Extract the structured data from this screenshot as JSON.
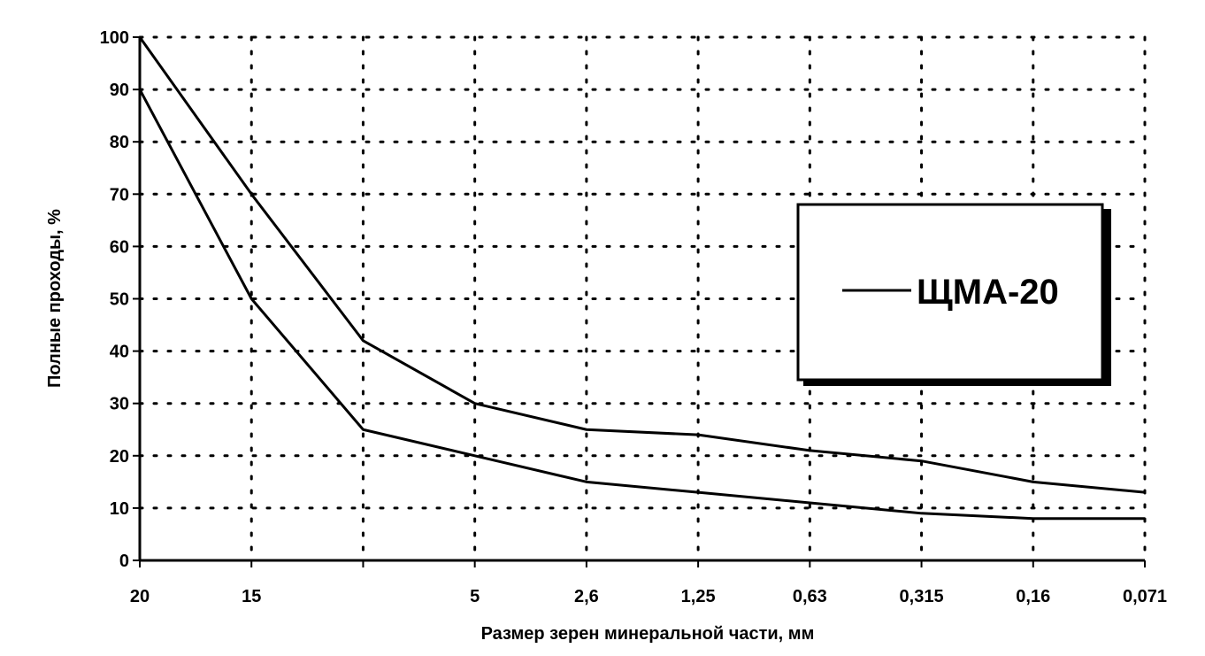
{
  "chart_data": {
    "type": "line",
    "title": "",
    "xlabel": "Размер зерен минеральной части, мм",
    "ylabel": "Полные проходы, %",
    "categories": [
      "20",
      "15",
      "",
      "5",
      "2,6",
      "1,25",
      "0,63",
      "0,315",
      "0,16",
      "0,071"
    ],
    "ylim": [
      0,
      100
    ],
    "yticks": [
      "0",
      "10",
      "20",
      "30",
      "40",
      "50",
      "60",
      "70",
      "80",
      "90",
      "100"
    ],
    "grid": true,
    "legend": {
      "position": "right",
      "label": "ЩМА-20"
    },
    "series": [
      {
        "values": [
          100,
          70,
          42,
          30,
          25,
          24,
          21,
          19,
          15,
          13
        ]
      },
      {
        "values": [
          90,
          50,
          25,
          20,
          15,
          13,
          11,
          9,
          8,
          8
        ]
      }
    ]
  }
}
